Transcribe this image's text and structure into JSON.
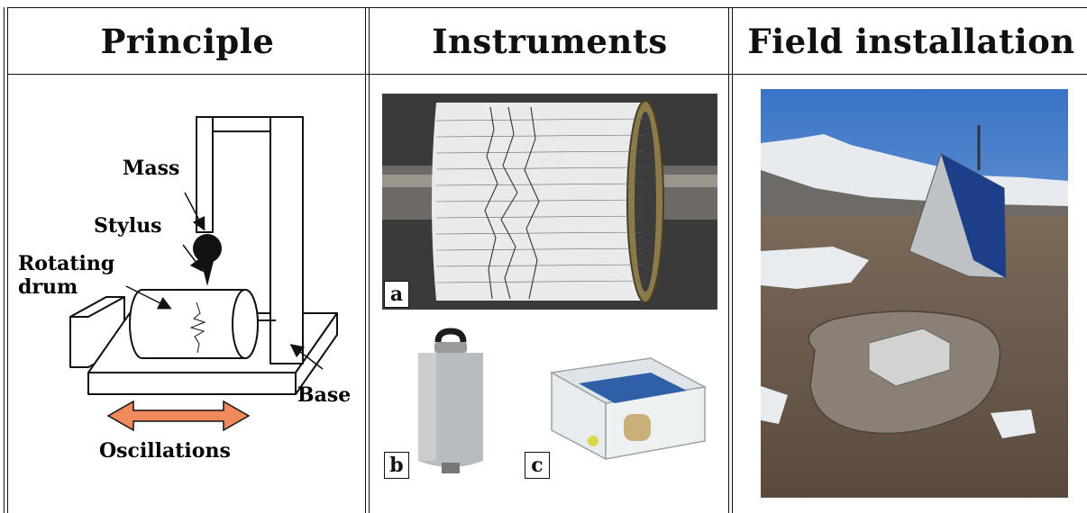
{
  "columns": {
    "principle": {
      "header": "Principle",
      "labels": {
        "mass": "Mass",
        "stylus": "Stylus",
        "rotating": "Rotating",
        "drum": "drum",
        "base": "Base",
        "oscillations": "Oscillations"
      },
      "arrow_color": "#f08a5d"
    },
    "instruments": {
      "header": "Instruments",
      "panels": [
        {
          "label": "a"
        },
        {
          "label": "b"
        },
        {
          "label": "c"
        }
      ]
    },
    "field": {
      "header": "Field installation"
    }
  }
}
